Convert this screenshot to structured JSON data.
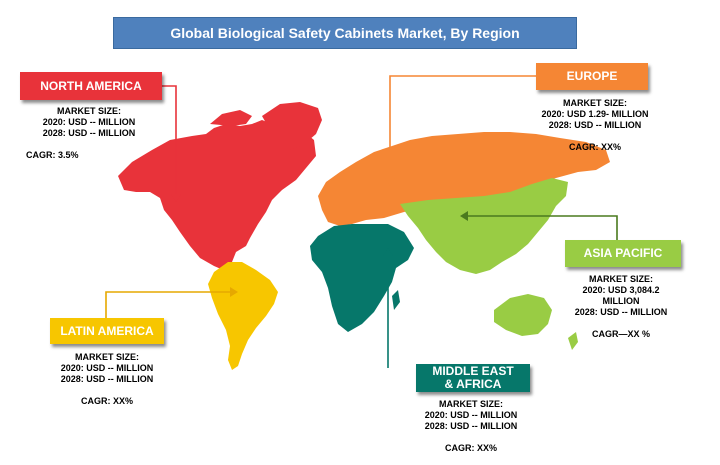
{
  "title": "Global Biological Safety Cabinets Market, By Region",
  "colors": {
    "north_america": "#e8333a",
    "europe": "#f58634",
    "asia_pacific": "#99cc44",
    "latin_america": "#f7c600",
    "middle_east_africa": "#06776a",
    "title_bar": "#4f81bd"
  },
  "regions": {
    "north_america": {
      "label": "NORTH AMERICA",
      "market_size_label": "MARKET SIZE:",
      "line_2020": "2020: USD -- MILLION",
      "line_2028": "2028: USD -- MILLION",
      "cagr": "CAGR: 3.5%"
    },
    "europe": {
      "label": "EUROPE",
      "market_size_label": "MARKET SIZE:",
      "line_2020": "2020: USD 1.29- MILLION",
      "line_2028": "2028: USD -- MILLION",
      "cagr": "CAGR: XX%"
    },
    "asia_pacific": {
      "label": "ASIA PACIFIC",
      "market_size_label": "MARKET SIZE:",
      "line_2020": "2020: USD  3,084.2",
      "line_2020b": "MILLION",
      "line_2028": "2028: USD -- MILLION",
      "cagr": "CAGR—XX    %"
    },
    "latin_america": {
      "label": "LATIN AMERICA",
      "market_size_label": "MARKET SIZE:",
      "line_2020": "2020: USD -- MILLION",
      "line_2028": "2028: USD -- MILLION",
      "cagr": "CAGR: XX%"
    },
    "middle_east_africa": {
      "label_line1": "MIDDLE EAST",
      "label_line2": "& AFRICA",
      "market_size_label": "MARKET SIZE:",
      "line_2020": "2020: USD -- MILLION",
      "line_2028": "2028: USD -- MILLION",
      "cagr": "CAGR: XX%"
    }
  }
}
